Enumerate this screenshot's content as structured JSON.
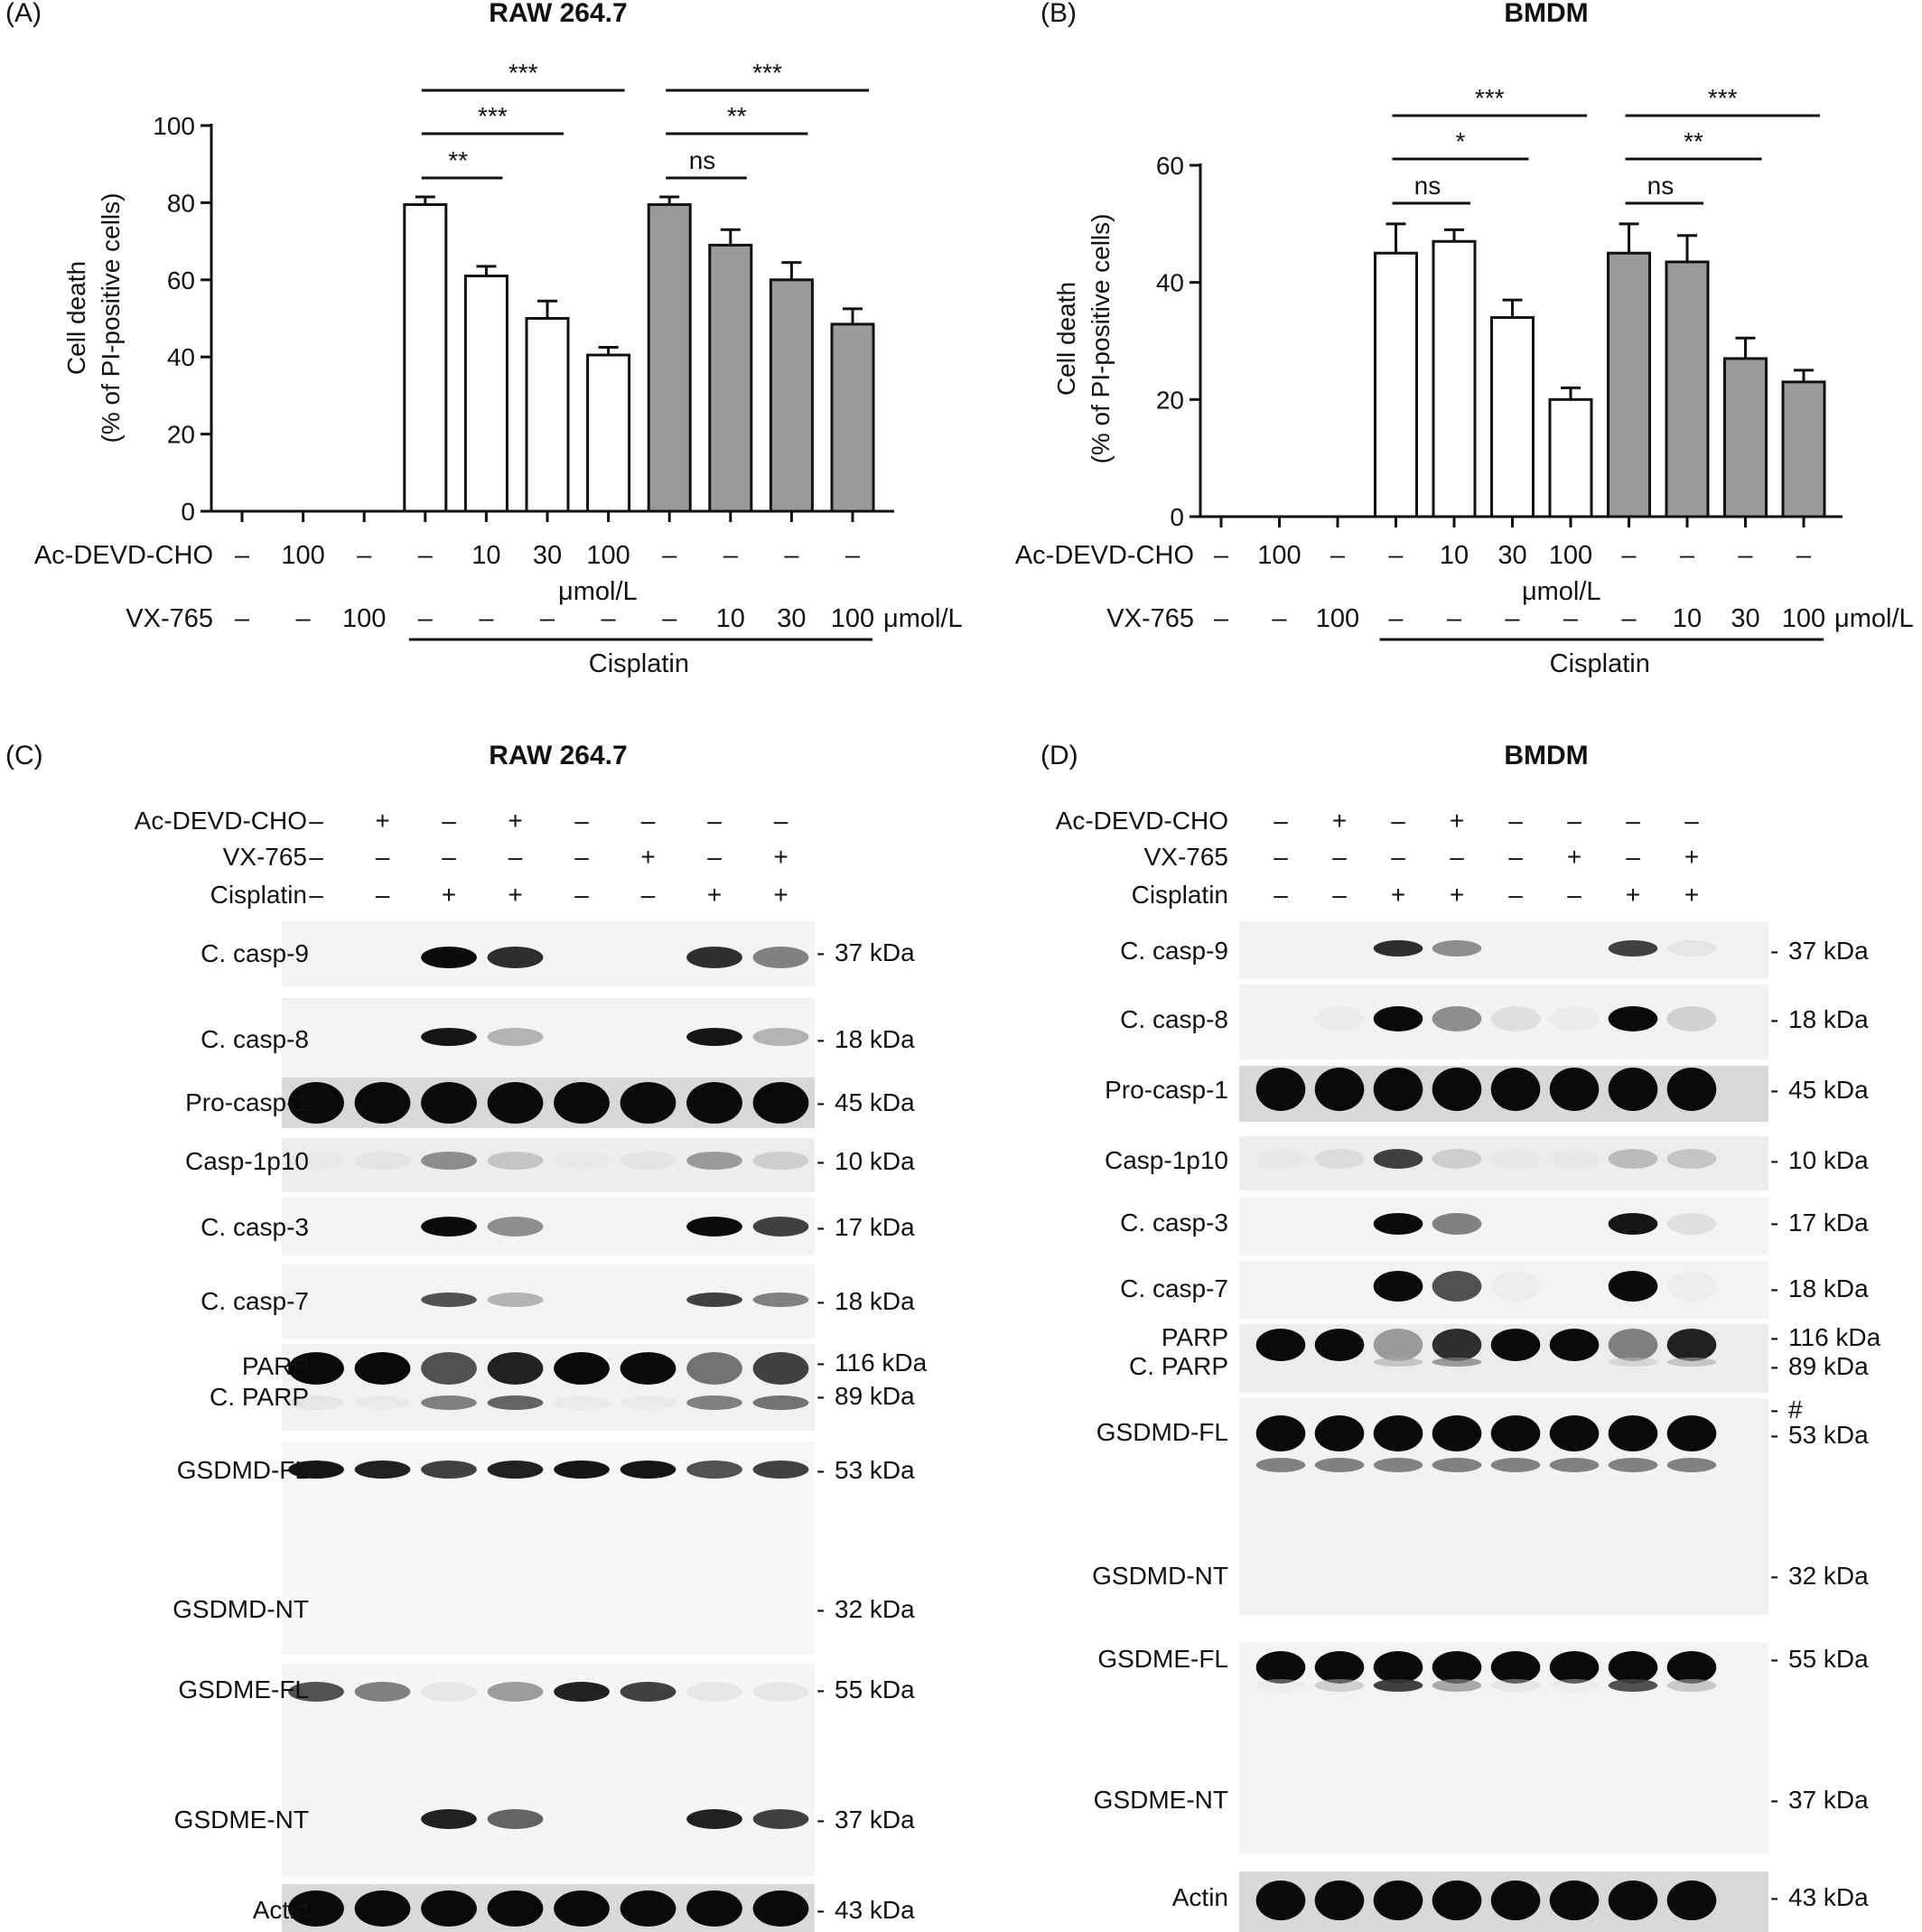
{
  "panels": {
    "A": {
      "letter": "(A)",
      "title": "RAW 264.7"
    },
    "B": {
      "letter": "(B)",
      "title": "BMDM"
    },
    "C": {
      "letter": "(C)",
      "title": "RAW 264.7"
    },
    "D": {
      "letter": "(D)",
      "title": "BMDM"
    }
  },
  "chart_data": [
    {
      "type": "bar",
      "panel": "A",
      "title": "RAW 264.7",
      "ylabel_lines": [
        "Cell death",
        "(% of PI-positive cells)"
      ],
      "ylim": [
        0,
        100
      ],
      "yticks": [
        "0",
        "20",
        "40",
        "60",
        "80",
        "100"
      ],
      "values": [
        0,
        0,
        0,
        79.5,
        61,
        50,
        40.5,
        79.5,
        69,
        60,
        48.5
      ],
      "errors": [
        0,
        0,
        0,
        2,
        2.5,
        4.5,
        2,
        2,
        4,
        4.5,
        4
      ],
      "fill": [
        "#ffffff",
        "#ffffff",
        "#ffffff",
        "#ffffff",
        "#ffffff",
        "#ffffff",
        "#ffffff",
        "#9a9a9a",
        "#9a9a9a",
        "#9a9a9a",
        "#9a9a9a"
      ],
      "rows": [
        {
          "label": "Ac-DEVD-CHO",
          "values": [
            "–",
            "100",
            "–",
            "–",
            "10",
            "30",
            "100",
            "–",
            "–",
            "–",
            "–"
          ]
        },
        {
          "label": "VX-765",
          "values": [
            "–",
            "–",
            "100",
            "–",
            "–",
            "–",
            "–",
            "–",
            "10",
            "30",
            "100"
          ]
        }
      ],
      "mid_unit": "μmol/L",
      "end_unit": "μmol/L",
      "group_label": "Cisplatin",
      "significance": [
        {
          "from": 3,
          "to": 4,
          "text": "**"
        },
        {
          "from": 3,
          "to": 5,
          "text": "***"
        },
        {
          "from": 3,
          "to": 6,
          "text": "***"
        },
        {
          "from": 7,
          "to": 8,
          "text": "ns"
        },
        {
          "from": 7,
          "to": 9,
          "text": "**"
        },
        {
          "from": 7,
          "to": 10,
          "text": "***"
        }
      ]
    },
    {
      "type": "bar",
      "panel": "B",
      "title": "BMDM",
      "ylabel_lines": [
        "Cell death",
        "(% of PI-positive cells)"
      ],
      "ylim": [
        0,
        60
      ],
      "yticks": [
        "0",
        "20",
        "40",
        "60"
      ],
      "values": [
        0,
        0,
        0,
        45,
        47,
        34,
        20,
        45,
        43.5,
        27,
        23
      ],
      "errors": [
        0,
        0,
        0,
        5,
        2,
        3,
        2,
        5,
        4.5,
        3.5,
        2
      ],
      "fill": [
        "#ffffff",
        "#ffffff",
        "#ffffff",
        "#ffffff",
        "#ffffff",
        "#ffffff",
        "#ffffff",
        "#9a9a9a",
        "#9a9a9a",
        "#9a9a9a",
        "#9a9a9a"
      ],
      "rows": [
        {
          "label": "Ac-DEVD-CHO",
          "values": [
            "–",
            "100",
            "–",
            "–",
            "10",
            "30",
            "100",
            "–",
            "–",
            "–",
            "–"
          ]
        },
        {
          "label": "VX-765",
          "values": [
            "–",
            "–",
            "100",
            "–",
            "–",
            "–",
            "–",
            "–",
            "10",
            "30",
            "100"
          ]
        }
      ],
      "mid_unit": "μmol/L",
      "end_unit": "μmol/L",
      "group_label": "Cisplatin",
      "significance": [
        {
          "from": 3,
          "to": 4,
          "text": "ns"
        },
        {
          "from": 3,
          "to": 5,
          "text": "*"
        },
        {
          "from": 3,
          "to": 6,
          "text": "***"
        },
        {
          "from": 7,
          "to": 8,
          "text": "ns"
        },
        {
          "from": 7,
          "to": 9,
          "text": "**"
        },
        {
          "from": 7,
          "to": 10,
          "text": "***"
        }
      ]
    }
  ],
  "blots": [
    {
      "panel": "C",
      "treatments": [
        {
          "label": "Ac-DEVD-CHO",
          "values": [
            "–",
            "+",
            "–",
            "+",
            "–",
            "–",
            "–",
            "–"
          ]
        },
        {
          "label": "VX-765",
          "values": [
            "–",
            "–",
            "–",
            "–",
            "–",
            "+",
            "–",
            "+"
          ]
        },
        {
          "label": "Cisplatin",
          "values": [
            "–",
            "–",
            "+",
            "+",
            "–",
            "–",
            "+",
            "+"
          ]
        }
      ],
      "strips": [
        {
          "labels": [
            "C. casp-9"
          ],
          "markers": [
            "37 kDa"
          ],
          "bands": [
            [
              0,
              0,
              1,
              0.85,
              0,
              0,
              0.85,
              0.6
            ]
          ]
        },
        {
          "labels": [
            "C. casp-8"
          ],
          "markers": [
            "18 kDa"
          ],
          "bands": [
            [
              0,
              0,
              0.95,
              0.4,
              0,
              0,
              0.95,
              0.4
            ]
          ]
        },
        {
          "labels": [
            "Pro-casp-1"
          ],
          "markers": [
            "45 kDa"
          ],
          "bands": [
            [
              1,
              1,
              1,
              1,
              1,
              1,
              1,
              1
            ]
          ]
        },
        {
          "labels": [
            "Casp-1p10"
          ],
          "markers": [
            "10 kDa"
          ],
          "bands": [
            [
              0.05,
              0.1,
              0.55,
              0.3,
              0.05,
              0.1,
              0.5,
              0.25
            ]
          ]
        },
        {
          "labels": [
            "C. casp-3"
          ],
          "markers": [
            "17 kDa"
          ],
          "bands": [
            [
              0,
              0,
              1,
              0.55,
              0,
              0,
              1,
              0.8
            ]
          ]
        },
        {
          "labels": [
            "C. casp-7"
          ],
          "markers": [
            "18 kDa"
          ],
          "bands": [
            [
              0,
              0,
              0.75,
              0.4,
              0,
              0,
              0.8,
              0.6
            ]
          ]
        },
        {
          "labels": [
            "PARP",
            "C. PARP"
          ],
          "markers": [
            "116 kDa",
            "89 kDa"
          ],
          "bands": [
            [
              1,
              1,
              0.75,
              0.9,
              1,
              1,
              0.65,
              0.8
            ],
            [
              0.1,
              0.05,
              0.6,
              0.7,
              0.05,
              0.05,
              0.6,
              0.65
            ]
          ]
        },
        {
          "labels": [
            "GSDMD-FL",
            "GSDMD-NT"
          ],
          "markers": [
            "53 kDa",
            "32 kDa"
          ],
          "bands": [
            [
              0.95,
              0.9,
              0.8,
              0.9,
              0.95,
              0.95,
              0.75,
              0.8
            ],
            [
              0,
              0,
              0,
              0,
              0,
              0,
              0,
              0
            ]
          ]
        },
        {
          "labels": [
            "GSDME-FL",
            "GSDME-NT"
          ],
          "markers": [
            "55 kDa",
            "37 kDa"
          ],
          "bands": [
            [
              0.75,
              0.6,
              0.1,
              0.5,
              0.9,
              0.8,
              0.1,
              0.1
            ],
            [
              0,
              0,
              0.9,
              0.7,
              0,
              0,
              0.9,
              0.8
            ]
          ]
        },
        {
          "labels": [
            "Actin"
          ],
          "markers": [
            "43 kDa"
          ],
          "bands": [
            [
              1,
              1,
              1,
              1,
              1,
              1,
              1,
              1
            ]
          ]
        }
      ]
    },
    {
      "panel": "D",
      "treatments": [
        {
          "label": "Ac-DEVD-CHO",
          "values": [
            "–",
            "+",
            "–",
            "+",
            "–",
            "–",
            "–",
            "–"
          ]
        },
        {
          "label": "VX-765",
          "values": [
            "–",
            "–",
            "–",
            "–",
            "–",
            "+",
            "–",
            "+"
          ]
        },
        {
          "label": "Cisplatin",
          "values": [
            "–",
            "–",
            "+",
            "+",
            "–",
            "–",
            "+",
            "+"
          ]
        }
      ],
      "strips": [
        {
          "labels": [
            "C. casp-9"
          ],
          "markers": [
            "37 kDa"
          ],
          "bands": [
            [
              0,
              0,
              0.85,
              0.55,
              0,
              0,
              0.8,
              0.1
            ]
          ]
        },
        {
          "labels": [
            "C. casp-8"
          ],
          "markers": [
            "18 kDa"
          ],
          "bands": [
            [
              0,
              0.05,
              1,
              0.55,
              0.15,
              0.05,
              1,
              0.25
            ]
          ]
        },
        {
          "labels": [
            "Pro-casp-1"
          ],
          "markers": [
            "45 kDa"
          ],
          "bands": [
            [
              1,
              1,
              1,
              1,
              1,
              1,
              1,
              1
            ]
          ]
        },
        {
          "labels": [
            "Casp-1p10"
          ],
          "markers": [
            "10 kDa"
          ],
          "bands": [
            [
              0.05,
              0.15,
              0.8,
              0.25,
              0.05,
              0.05,
              0.35,
              0.3
            ]
          ]
        },
        {
          "labels": [
            "C. casp-3"
          ],
          "markers": [
            "17 kDa"
          ],
          "bands": [
            [
              0,
              0,
              1,
              0.6,
              0,
              0,
              0.95,
              0.15
            ]
          ]
        },
        {
          "labels": [
            "C. casp-7"
          ],
          "markers": [
            "18 kDa"
          ],
          "bands": [
            [
              0,
              0,
              1,
              0.75,
              0.05,
              0,
              1,
              0.05
            ]
          ]
        },
        {
          "labels": [
            "PARP",
            "C. PARP"
          ],
          "markers": [
            "116 kDa",
            "89 kDa"
          ],
          "bands": [
            [
              1,
              1,
              0.5,
              0.85,
              1,
              1,
              0.6,
              0.9
            ],
            [
              0,
              0,
              0.3,
              0.5,
              0,
              0,
              0.2,
              0.3
            ]
          ]
        },
        {
          "labels": [
            "GSDMD-FL",
            "GSDMD-NT"
          ],
          "markers": [
            "#",
            "53 kDa",
            "32 kDa"
          ],
          "bands": [
            [
              1,
              1,
              1,
              1,
              1,
              1,
              1,
              1
            ],
            [
              0.6,
              0.6,
              0.6,
              0.6,
              0.6,
              0.6,
              0.6,
              0.6
            ]
          ]
        },
        {
          "labels": [
            "GSDME-FL",
            "GSDME-NT"
          ],
          "markers": [
            "55 kDa",
            "37 kDa"
          ],
          "bands": [
            [
              1,
              1,
              1,
              1,
              1,
              1,
              1,
              1
            ],
            [
              0.05,
              0.25,
              0.8,
              0.45,
              0.1,
              0.05,
              0.75,
              0.3
            ]
          ]
        },
        {
          "labels": [
            "Actin"
          ],
          "markers": [
            "43 kDa"
          ],
          "bands": [
            [
              1,
              1,
              1,
              1,
              1,
              1,
              1,
              1
            ]
          ]
        }
      ]
    }
  ]
}
